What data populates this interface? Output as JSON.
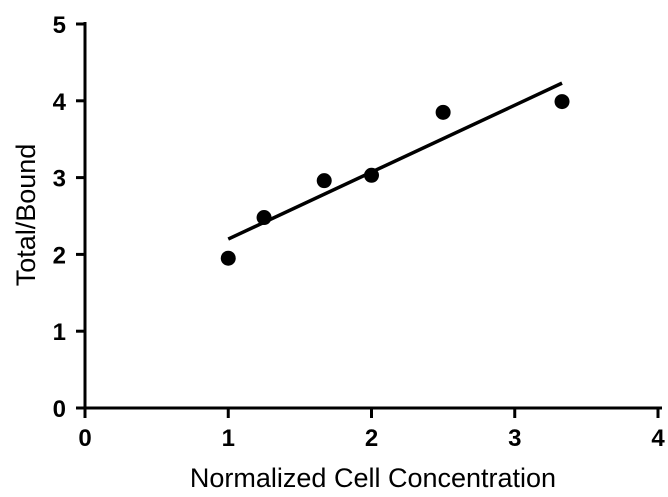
{
  "chart_data": {
    "type": "scatter",
    "title": "",
    "xlabel": "Normalized Cell Concentration",
    "ylabel": "Total/Bound",
    "xlim": [
      0,
      4
    ],
    "ylim": [
      0,
      5
    ],
    "x_ticks": [
      "0",
      "1",
      "2",
      "3",
      "4"
    ],
    "y_ticks": [
      "0",
      "1",
      "2",
      "3",
      "4",
      "5"
    ],
    "grid": false,
    "legend": "none",
    "points": [
      {
        "x": 1.0,
        "y": 1.95
      },
      {
        "x": 1.25,
        "y": 2.48
      },
      {
        "x": 1.67,
        "y": 2.96
      },
      {
        "x": 2.0,
        "y": 3.03
      },
      {
        "x": 2.5,
        "y": 3.85
      },
      {
        "x": 3.33,
        "y": 3.99
      }
    ],
    "fit_line": {
      "x_start": 1.0,
      "y_start": 2.2,
      "x_end": 3.33,
      "y_end": 4.23
    },
    "marker_color": "#000000",
    "line_color": "#000000"
  }
}
